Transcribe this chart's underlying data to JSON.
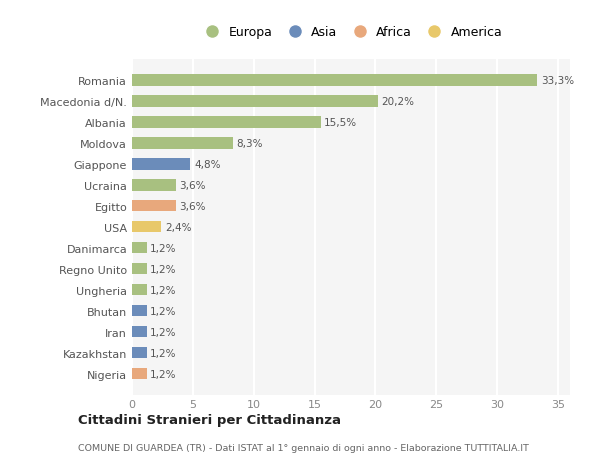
{
  "categories": [
    "Nigeria",
    "Kazakhstan",
    "Iran",
    "Bhutan",
    "Ungheria",
    "Regno Unito",
    "Danimarca",
    "USA",
    "Egitto",
    "Ucraina",
    "Giappone",
    "Moldova",
    "Albania",
    "Macedonia d/N.",
    "Romania"
  ],
  "values": [
    1.2,
    1.2,
    1.2,
    1.2,
    1.2,
    1.2,
    1.2,
    2.4,
    3.6,
    3.6,
    4.8,
    8.3,
    15.5,
    20.2,
    33.3
  ],
  "labels": [
    "1,2%",
    "1,2%",
    "1,2%",
    "1,2%",
    "1,2%",
    "1,2%",
    "1,2%",
    "2,4%",
    "3,6%",
    "3,6%",
    "4,8%",
    "8,3%",
    "15,5%",
    "20,2%",
    "33,3%"
  ],
  "colors": [
    "#e8a87c",
    "#6b8cba",
    "#6b8cba",
    "#6b8cba",
    "#a8c080",
    "#a8c080",
    "#a8c080",
    "#e8c86a",
    "#e8a87c",
    "#a8c080",
    "#6b8cba",
    "#a8c080",
    "#a8c080",
    "#a8c080",
    "#a8c080"
  ],
  "legend": {
    "Europa": "#a8c080",
    "Asia": "#6b8cba",
    "Africa": "#e8a87c",
    "America": "#e8c86a"
  },
  "title": "Cittadini Stranieri per Cittadinanza",
  "subtitle": "COMUNE DI GUARDEA (TR) - Dati ISTAT al 1° gennaio di ogni anno - Elaborazione TUTTITALIA.IT",
  "xlim": [
    0,
    36
  ],
  "xticks": [
    0,
    5,
    10,
    15,
    20,
    25,
    30,
    35
  ],
  "bg_color": "#ffffff",
  "plot_bg_color": "#f5f5f5",
  "grid_color": "#ffffff",
  "bar_height": 0.55
}
